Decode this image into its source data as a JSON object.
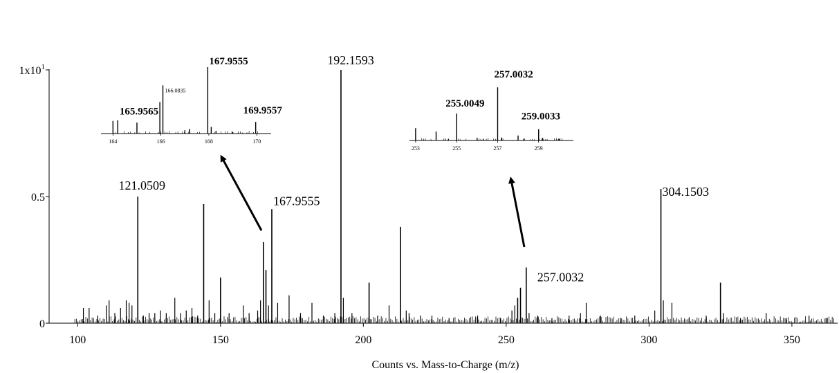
{
  "chart_data": {
    "type": "bar",
    "xlabel": "Counts vs. Mass-to-Charge (m/z)",
    "xlim": [
      90,
      366
    ],
    "x_ticks": [
      "100",
      "150",
      "200",
      "250",
      "300",
      "350"
    ],
    "ylim": [
      0,
      1.2
    ],
    "y_ticks": [
      {
        "value": 0,
        "label": "0"
      },
      {
        "value": 0.5,
        "label": "0.5"
      },
      {
        "value": 1.0,
        "label": "1x10",
        "sup": "1"
      }
    ],
    "major_peaks": [
      {
        "mz": 121.0509,
        "intensity": 0.5,
        "label": "121.0509"
      },
      {
        "mz": 144.1,
        "intensity": 0.47
      },
      {
        "mz": 150.0,
        "intensity": 0.18
      },
      {
        "mz": 165.0,
        "intensity": 0.32
      },
      {
        "mz": 165.9,
        "intensity": 0.21
      },
      {
        "mz": 167.9555,
        "intensity": 0.45,
        "label": "167.9555"
      },
      {
        "mz": 192.1593,
        "intensity": 1.0,
        "label": "192.1593"
      },
      {
        "mz": 202.0,
        "intensity": 0.16
      },
      {
        "mz": 213.0,
        "intensity": 0.38
      },
      {
        "mz": 254.0,
        "intensity": 0.1
      },
      {
        "mz": 255.0,
        "intensity": 0.14
      },
      {
        "mz": 257.0032,
        "intensity": 0.22,
        "label": "257.0032"
      },
      {
        "mz": 304.1503,
        "intensity": 0.53,
        "label": "304.1503"
      },
      {
        "mz": 325.0,
        "intensity": 0.16
      }
    ],
    "minor_peaks": [
      {
        "mz": 102.0,
        "intensity": 0.06
      },
      {
        "mz": 104.0,
        "intensity": 0.06
      },
      {
        "mz": 107.0,
        "intensity": 0.03
      },
      {
        "mz": 110.0,
        "intensity": 0.07
      },
      {
        "mz": 111.0,
        "intensity": 0.09
      },
      {
        "mz": 113.0,
        "intensity": 0.04
      },
      {
        "mz": 115.0,
        "intensity": 0.06
      },
      {
        "mz": 117.0,
        "intensity": 0.09
      },
      {
        "mz": 118.0,
        "intensity": 0.08
      },
      {
        "mz": 119.0,
        "intensity": 0.07
      },
      {
        "mz": 123.0,
        "intensity": 0.03
      },
      {
        "mz": 125.0,
        "intensity": 0.04
      },
      {
        "mz": 127.0,
        "intensity": 0.04
      },
      {
        "mz": 129.0,
        "intensity": 0.05
      },
      {
        "mz": 131.0,
        "intensity": 0.04
      },
      {
        "mz": 134.0,
        "intensity": 0.1
      },
      {
        "mz": 136.0,
        "intensity": 0.04
      },
      {
        "mz": 138.0,
        "intensity": 0.05
      },
      {
        "mz": 140.0,
        "intensity": 0.06
      },
      {
        "mz": 142.0,
        "intensity": 0.03
      },
      {
        "mz": 146.0,
        "intensity": 0.09
      },
      {
        "mz": 148.0,
        "intensity": 0.04
      },
      {
        "mz": 153.0,
        "intensity": 0.04
      },
      {
        "mz": 158.0,
        "intensity": 0.07
      },
      {
        "mz": 160.0,
        "intensity": 0.04
      },
      {
        "mz": 163.0,
        "intensity": 0.05
      },
      {
        "mz": 164.0,
        "intensity": 0.09
      },
      {
        "mz": 166.8,
        "intensity": 0.07
      },
      {
        "mz": 170.0,
        "intensity": 0.08
      },
      {
        "mz": 174.0,
        "intensity": 0.11
      },
      {
        "mz": 178.0,
        "intensity": 0.04
      },
      {
        "mz": 182.0,
        "intensity": 0.08
      },
      {
        "mz": 186.0,
        "intensity": 0.03
      },
      {
        "mz": 190.0,
        "intensity": 0.04
      },
      {
        "mz": 193.0,
        "intensity": 0.1
      },
      {
        "mz": 196.0,
        "intensity": 0.04
      },
      {
        "mz": 205.0,
        "intensity": 0.03
      },
      {
        "mz": 209.0,
        "intensity": 0.07
      },
      {
        "mz": 215.0,
        "intensity": 0.05
      },
      {
        "mz": 216.0,
        "intensity": 0.04
      },
      {
        "mz": 220.0,
        "intensity": 0.03
      },
      {
        "mz": 224.0,
        "intensity": 0.03
      },
      {
        "mz": 230.0,
        "intensity": 0.02
      },
      {
        "mz": 240.0,
        "intensity": 0.03
      },
      {
        "mz": 248.0,
        "intensity": 0.02
      },
      {
        "mz": 252.0,
        "intensity": 0.05
      },
      {
        "mz": 253.0,
        "intensity": 0.07
      },
      {
        "mz": 258.0,
        "intensity": 0.04
      },
      {
        "mz": 261.0,
        "intensity": 0.03
      },
      {
        "mz": 266.0,
        "intensity": 0.02
      },
      {
        "mz": 272.0,
        "intensity": 0.03
      },
      {
        "mz": 276.0,
        "intensity": 0.04
      },
      {
        "mz": 278.0,
        "intensity": 0.08
      },
      {
        "mz": 283.0,
        "intensity": 0.03
      },
      {
        "mz": 290.0,
        "intensity": 0.02
      },
      {
        "mz": 295.0,
        "intensity": 0.03
      },
      {
        "mz": 302.0,
        "intensity": 0.05
      },
      {
        "mz": 305.0,
        "intensity": 0.09
      },
      {
        "mz": 308.0,
        "intensity": 0.08
      },
      {
        "mz": 314.0,
        "intensity": 0.02
      },
      {
        "mz": 320.0,
        "intensity": 0.03
      },
      {
        "mz": 326.0,
        "intensity": 0.04
      },
      {
        "mz": 332.0,
        "intensity": 0.02
      },
      {
        "mz": 341.0,
        "intensity": 0.04
      },
      {
        "mz": 348.0,
        "intensity": 0.02
      },
      {
        "mz": 356.0,
        "intensity": 0.03
      },
      {
        "mz": 362.0,
        "intensity": 0.02
      }
    ],
    "insets": [
      {
        "xlim": [
          163.5,
          170.6
        ],
        "x_ticks": [
          "164",
          "166",
          "168",
          "170"
        ],
        "peaks": [
          {
            "mz": 164.0,
            "intensity": 0.38
          },
          {
            "mz": 164.2,
            "intensity": 0.4
          },
          {
            "mz": 165.0,
            "intensity": 0.33
          },
          {
            "mz": 165.9565,
            "intensity": 0.95,
            "label": "165.9565",
            "bold": true
          },
          {
            "mz": 166.0835,
            "intensity": 1.45,
            "label": "166.0835",
            "bold": false
          },
          {
            "mz": 167.0,
            "intensity": 0.1
          },
          {
            "mz": 167.2,
            "intensity": 0.14
          },
          {
            "mz": 167.9555,
            "intensity": 2.0,
            "label": "167.9555",
            "bold": true
          },
          {
            "mz": 168.1,
            "intensity": 0.2
          },
          {
            "mz": 168.3,
            "intensity": 0.08
          },
          {
            "mz": 169.0,
            "intensity": 0.05
          },
          {
            "mz": 169.9557,
            "intensity": 0.35,
            "label": "169.9557",
            "bold": true
          }
        ]
      },
      {
        "xlim": [
          252.7,
          260.7
        ],
        "x_ticks": [
          "253",
          "255",
          "257",
          "259"
        ],
        "peaks": [
          {
            "mz": 253.0,
            "intensity": 0.37
          },
          {
            "mz": 254.0,
            "intensity": 0.27
          },
          {
            "mz": 254.6,
            "intensity": 0.05
          },
          {
            "mz": 255.0049,
            "intensity": 0.81,
            "label": "255.0049",
            "bold": true
          },
          {
            "mz": 256.0,
            "intensity": 0.08
          },
          {
            "mz": 256.3,
            "intensity": 0.05
          },
          {
            "mz": 257.0032,
            "intensity": 1.6,
            "label": "257.0032",
            "bold": true
          },
          {
            "mz": 257.2,
            "intensity": 0.09
          },
          {
            "mz": 258.0,
            "intensity": 0.15
          },
          {
            "mz": 258.3,
            "intensity": 0.06
          },
          {
            "mz": 259.0033,
            "intensity": 0.34,
            "label": "259.0033",
            "bold": true
          },
          {
            "mz": 259.2,
            "intensity": 0.08
          },
          {
            "mz": 260.0,
            "intensity": 0.05
          }
        ]
      }
    ]
  }
}
